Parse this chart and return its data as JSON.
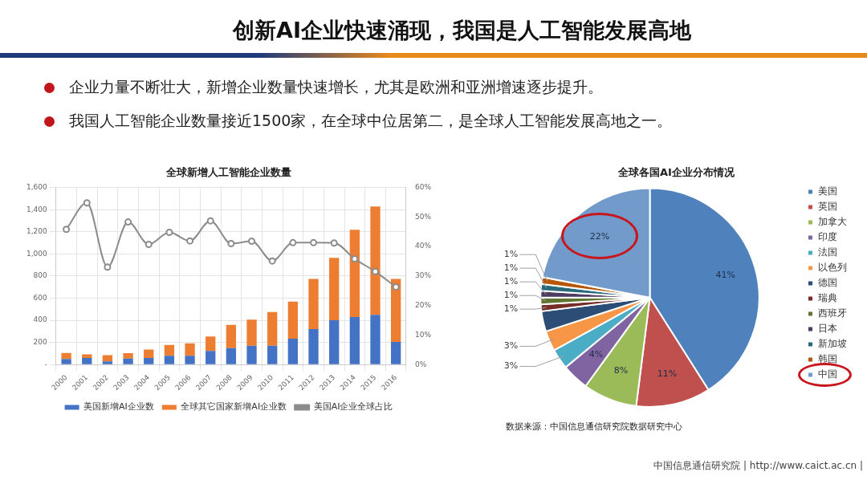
{
  "chart_data": [
    {
      "type": "other",
      "title": "创新AI企业快速涌现，我国是人工智能发展高地",
      "annotations": [
        "企业力量不断壮大，新增企业数量快速增长，尤其是欧洲和亚洲增速逐步提升。",
        "我国人工智能企业数量接近1500家，在全球中位居第二，是全球人工智能发展高地之一。"
      ]
    },
    {
      "type": "bar",
      "title": "全球新增人工智能企业数量",
      "stacked": true,
      "grid": true,
      "legend": "bottom",
      "marker": "circle",
      "categories": [
        "2000",
        "2001",
        "2002",
        "2003",
        "2004",
        "2005",
        "2006",
        "2007",
        "2008",
        "2009",
        "2010",
        "2011",
        "2012",
        "2013",
        "2014",
        "2015",
        "2016"
      ],
      "series": [
        {
          "name": "美国新增AI企业数",
          "color": "#4472c4",
          "values": [
            50,
            60,
            28,
            54,
            60,
            80,
            80,
            123,
            149,
            169,
            169,
            233,
            320,
            400,
            430,
            449,
            205
          ]
        },
        {
          "name": "全球其它国家新增AI企业数",
          "color": "#ed7d31",
          "values": [
            55,
            32,
            57,
            48,
            76,
            97,
            112,
            131,
            210,
            236,
            305,
            336,
            454,
            564,
            788,
            979,
            569
          ]
        },
        {
          "name": "美国AI企业全球占比",
          "type": "line",
          "axis": "y2",
          "color": "#8c8c8c",
          "values": [
            45.8,
            54.8,
            33,
            48.3,
            40.7,
            44.8,
            41.9,
            48.7,
            41,
            41.8,
            35.1,
            41.3,
            41.3,
            41.2,
            35.8,
            31.5,
            26.3
          ]
        }
      ],
      "ylim": [
        0,
        1600
      ],
      "yticks": [
        {
          "value": 0,
          "label": "-"
        },
        200,
        400,
        600,
        800,
        {
          "value": 1000,
          "label": "1,000"
        },
        {
          "value": 1200,
          "label": "1,200"
        },
        {
          "value": 1400,
          "label": "1,400"
        },
        {
          "value": 1600,
          "label": "1,600"
        }
      ],
      "y2lim": [
        0,
        60
      ],
      "y2ticks": [
        {
          "value": 0,
          "label": "0%"
        },
        {
          "value": 10,
          "label": "10%"
        },
        {
          "value": 20,
          "label": "20%"
        },
        {
          "value": 30,
          "label": "30%"
        },
        {
          "value": 40,
          "label": "40%"
        },
        {
          "value": 50,
          "label": "50%"
        },
        {
          "value": 60,
          "label": "60%"
        }
      ]
    },
    {
      "type": "pie",
      "title": "全球各国AI企业分布情况",
      "legend": "right",
      "categories": [
        "美国",
        "英国",
        "加拿大",
        "印度",
        "法国",
        "以色列",
        "德国",
        "瑞典",
        "西班牙",
        "日本",
        "新加坡",
        "韩国",
        "中国"
      ],
      "values": [
        41,
        11,
        8,
        4,
        3,
        3,
        3,
        1,
        1,
        1,
        1,
        1,
        22
      ],
      "colors": [
        "#4f81bd",
        "#c0504d",
        "#9bbb59",
        "#8064a2",
        "#4bacc6",
        "#f79646",
        "#2c4d75",
        "#772c2a",
        "#5f7530",
        "#4d3b62",
        "#276a7c",
        "#b65708",
        "#729aca"
      ],
      "value_labels": [
        "41%",
        "11%",
        "8%",
        "4%",
        "3%",
        "3%",
        null,
        "1%",
        "1%",
        "1%",
        "1%",
        "1%",
        "22%"
      ],
      "annotations": [
        "数据来源：中国信息通信研究院数据研究中心",
        "中国信息通信研究院  |  http://www.caict.ac.cn  |"
      ]
    }
  ]
}
